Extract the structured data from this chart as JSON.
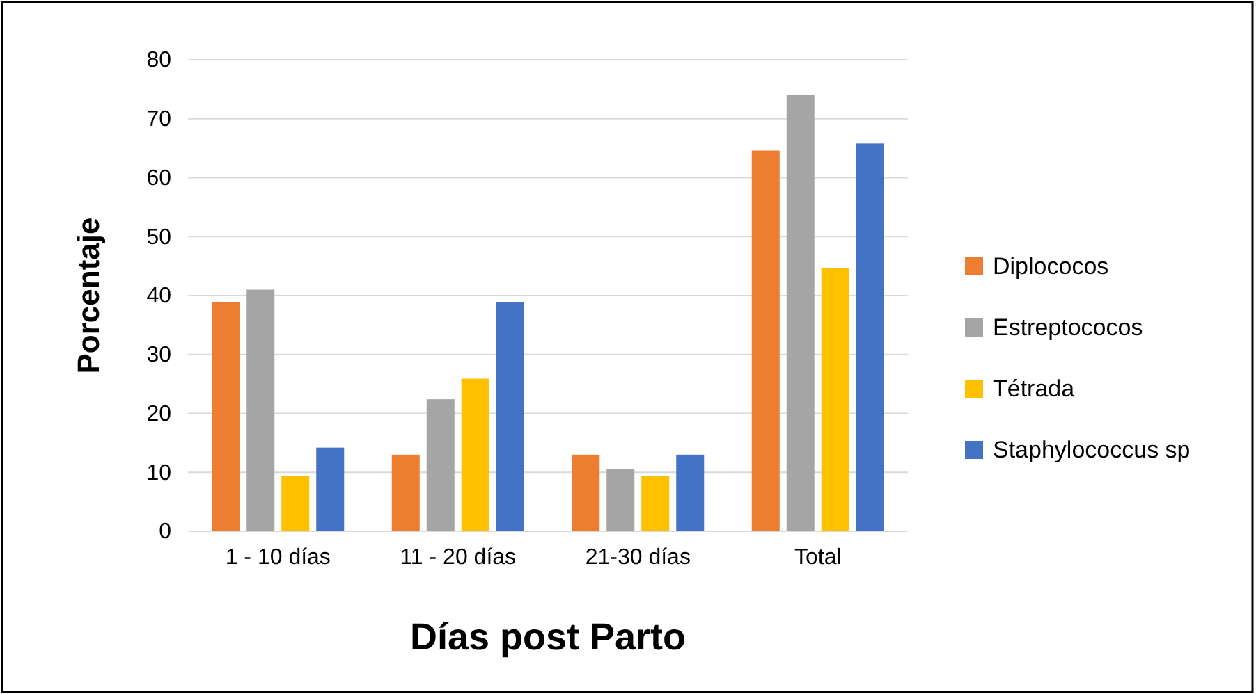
{
  "chart_data": {
    "type": "bar",
    "xlabel": "Días post Parto",
    "ylabel": "Porcentaje",
    "categories": [
      "1 - 10 días",
      "11 - 20 días",
      "21-30 días",
      "Total"
    ],
    "series": [
      {
        "name": "Diplococos",
        "color": "#ed7d31",
        "values": [
          38.9,
          13.0,
          13.0,
          64.6
        ]
      },
      {
        "name": "Estreptococos",
        "color": "#a5a5a5",
        "values": [
          41.0,
          22.4,
          10.6,
          74.1
        ]
      },
      {
        "name": "Tétrada",
        "color": "#ffc000",
        "values": [
          9.4,
          25.9,
          9.4,
          44.6
        ]
      },
      {
        "name": "Staphylococcus sp",
        "color": "#4472c4",
        "values": [
          14.2,
          38.9,
          13.0,
          65.8
        ]
      }
    ],
    "ylim": [
      0,
      80
    ],
    "yticks": [
      0,
      10,
      20,
      30,
      40,
      50,
      60,
      70,
      80
    ],
    "grid": "y",
    "legend": "right"
  }
}
